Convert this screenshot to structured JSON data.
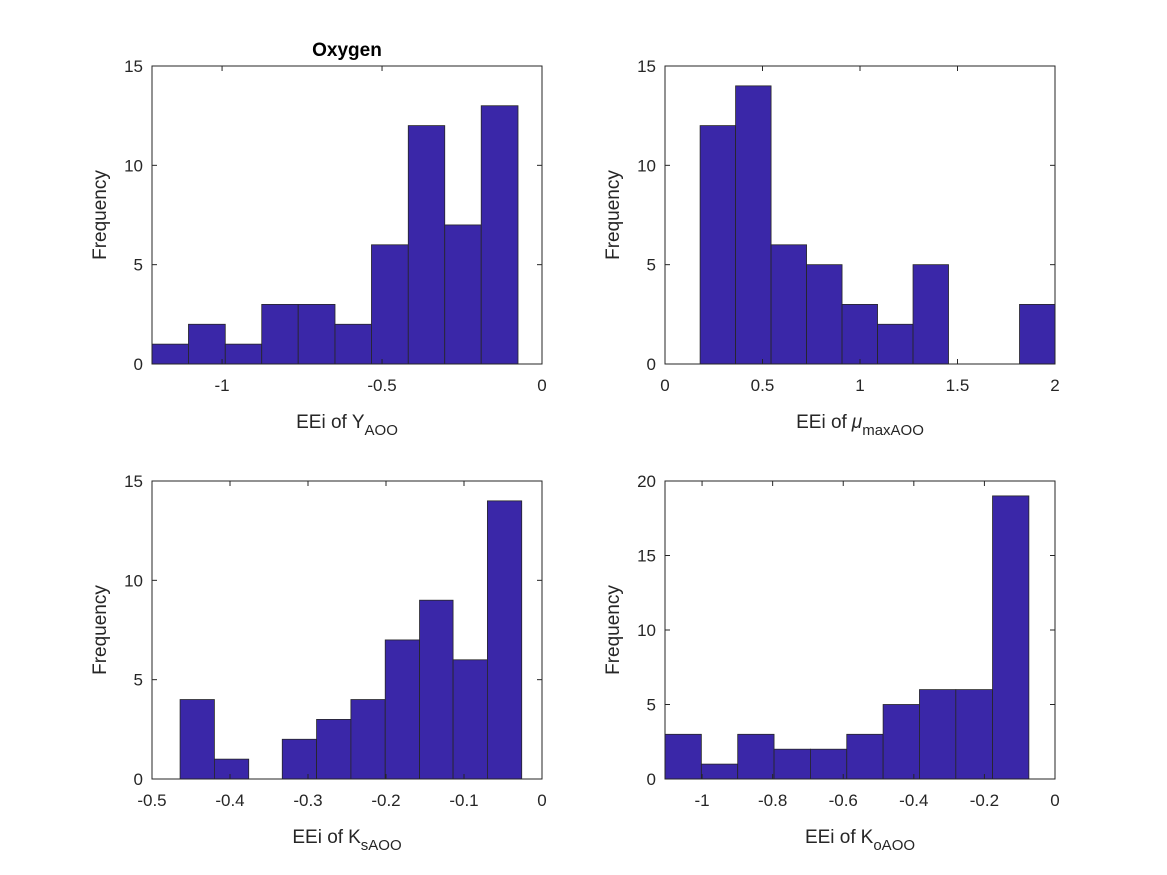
{
  "chart_data": [
    {
      "type": "histogram",
      "title": "Oxygen",
      "y_label": "Frequency",
      "x_label": {
        "text": "EEi of",
        "symbol": "Y",
        "subscript": "AOO"
      },
      "bins": [
        -1.219,
        -1.105,
        -0.99,
        -0.876,
        -0.762,
        -0.647,
        -0.533,
        -0.418,
        -0.304,
        -0.19,
        -0.075
      ],
      "values": [
        1,
        2,
        1,
        3,
        3,
        2,
        6,
        12,
        7,
        13
      ],
      "color": "#3a27a8",
      "edgecolor": "#262626",
      "xlim": [
        -1.219,
        0
      ],
      "xticks": [
        -1,
        -0.5,
        0
      ],
      "ylim": [
        0,
        15
      ],
      "yticks": [
        0,
        5,
        10,
        15
      ]
    },
    {
      "type": "histogram",
      "y_label": "Frequency",
      "x_label": {
        "text": "EEi of",
        "symbol": "μ",
        "subscript": "maxAOO"
      },
      "bins": [
        0.18,
        0.362,
        0.544,
        0.726,
        0.908,
        1.09,
        1.272,
        1.454,
        1.636,
        1.818,
        2.0
      ],
      "values": [
        12,
        14,
        6,
        5,
        3,
        2,
        5,
        0,
        0,
        3
      ],
      "color": "#3a27a8",
      "edgecolor": "#262626",
      "xlim": [
        0,
        2
      ],
      "xticks": [
        0,
        0.5,
        1,
        1.5,
        2
      ],
      "ylim": [
        0,
        15
      ],
      "yticks": [
        0,
        5,
        10,
        15
      ]
    },
    {
      "type": "histogram",
      "y_label": "Frequency",
      "x_label": {
        "text": "EEi of",
        "symbol": "K",
        "subscript": "sAOO"
      },
      "bins": [
        -0.464,
        -0.42,
        -0.376,
        -0.333,
        -0.289,
        -0.245,
        -0.201,
        -0.157,
        -0.114,
        -0.07,
        -0.026
      ],
      "values": [
        4,
        1,
        0,
        2,
        3,
        4,
        7,
        9,
        6,
        14
      ],
      "color": "#3a27a8",
      "edgecolor": "#262626",
      "xlim": [
        -0.5,
        0
      ],
      "xticks": [
        -0.5,
        -0.4,
        -0.3,
        -0.2,
        -0.1,
        0
      ],
      "ylim": [
        0,
        15
      ],
      "yticks": [
        0,
        5,
        10,
        15
      ]
    },
    {
      "type": "histogram",
      "y_label": "Frequency",
      "x_label": {
        "text": "EEi of",
        "symbol": "K",
        "subscript": "oAOO"
      },
      "bins": [
        -1.105,
        -1.002,
        -0.899,
        -0.796,
        -0.693,
        -0.59,
        -0.487,
        -0.384,
        -0.281,
        -0.177,
        -0.074
      ],
      "values": [
        3,
        1,
        3,
        2,
        2,
        3,
        5,
        6,
        6,
        19
      ],
      "color": "#3a27a8",
      "edgecolor": "#262626",
      "xlim": [
        -1.105,
        0
      ],
      "xticks": [
        -1,
        -0.8,
        -0.6,
        -0.4,
        -0.2,
        0
      ],
      "ylim": [
        0,
        20
      ],
      "yticks": [
        0,
        5,
        10,
        15,
        20
      ]
    }
  ]
}
